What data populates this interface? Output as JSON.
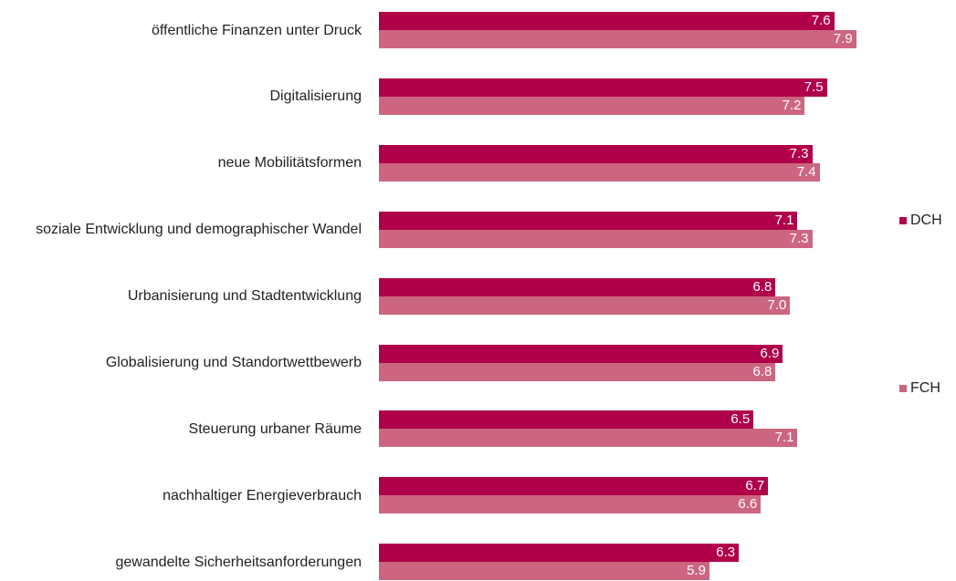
{
  "chart_data": {
    "type": "bar",
    "orientation": "horizontal",
    "categories": [
      "öffentliche Finanzen unter Druck",
      "Digitalisierung",
      "neue Mobilitätsformen",
      "soziale Entwicklung und demographischer Wandel",
      "Urbanisierung und Stadtentwicklung",
      "Globalisierung und Standortwettbewerb",
      "Steuerung urbaner Räume",
      "nachhaltiger Energieverbrauch",
      "gewandelte Sicherheitsanforderungen"
    ],
    "series": [
      {
        "name": "DCH",
        "color": "#b0004a",
        "values": [
          7.6,
          7.5,
          7.3,
          7.1,
          6.8,
          6.9,
          6.5,
          6.7,
          6.3
        ],
        "value_labels": [
          "7.6",
          "7.5",
          "7.3",
          "7.1",
          "6.8",
          "6.9",
          "6.5",
          "6.7",
          "6.3"
        ]
      },
      {
        "name": "FCH",
        "color": "#cc6680",
        "values": [
          7.9,
          7.2,
          7.4,
          7.3,
          7.0,
          6.8,
          7.1,
          6.6,
          5.9
        ],
        "value_labels": [
          "7.9",
          "7.2",
          "7.4",
          "7.3",
          "7.0",
          "6.8",
          "7.1",
          "6.6",
          "5.9"
        ]
      }
    ],
    "xlim": [
      1.4,
      8.4
    ]
  }
}
